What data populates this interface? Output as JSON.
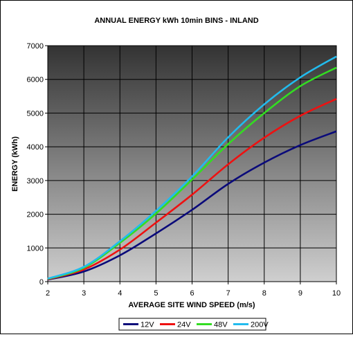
{
  "chart_data": {
    "type": "line",
    "title": "ANNUAL ENERGY kWh 10min BINS - INLAND",
    "xlabel": "AVERAGE SITE WIND SPEED (m/s)",
    "ylabel": "ENERGY (kWh)",
    "xlim": [
      2,
      10
    ],
    "ylim": [
      0,
      7000
    ],
    "x_ticks": [
      "2",
      "3",
      "4",
      "5",
      "6",
      "7",
      "8",
      "9",
      "10"
    ],
    "y_ticks": [
      "0",
      "1000",
      "2000",
      "3000",
      "4000",
      "5000",
      "6000",
      "7000"
    ],
    "grid": true,
    "legend_position": "bottom",
    "x": [
      2,
      3,
      4,
      5,
      6,
      7,
      8,
      9,
      10
    ],
    "series": [
      {
        "name": "12V",
        "color": "#0a0a7a",
        "values": [
          60,
          300,
          780,
          1430,
          2130,
          2900,
          3530,
          4050,
          4460
        ]
      },
      {
        "name": "24V",
        "color": "#ee1111",
        "values": [
          70,
          360,
          950,
          1750,
          2580,
          3480,
          4270,
          4920,
          5420
        ]
      },
      {
        "name": "48V",
        "color": "#33dd22",
        "values": [
          80,
          410,
          1150,
          2020,
          3030,
          4080,
          5000,
          5800,
          6350
        ]
      },
      {
        "name": "200V",
        "color": "#22bbee",
        "values": [
          90,
          440,
          1200,
          2100,
          3120,
          4280,
          5260,
          6060,
          6680
        ]
      }
    ]
  }
}
